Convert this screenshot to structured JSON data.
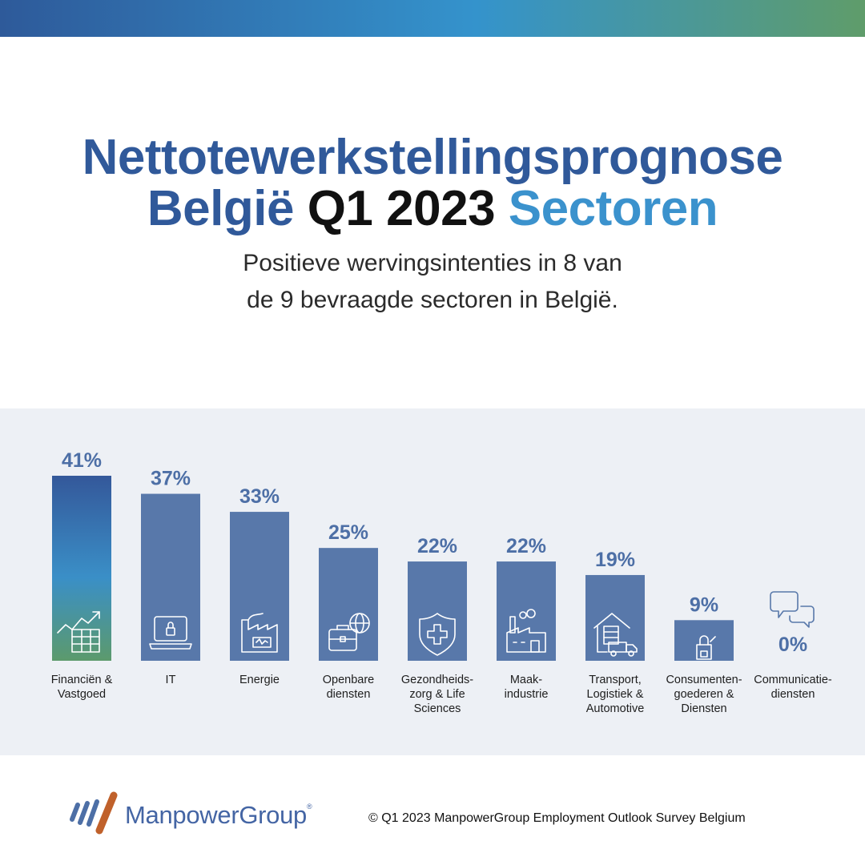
{
  "header": {
    "title_line1": "Nettotewerkstellingsprognose",
    "title_part_country": "België",
    "title_part_period": "Q1 2023",
    "title_part_sectors": "Sectoren",
    "subtitle_line1": "Positieve wervingsintenties in 8 van",
    "subtitle_line2": "de 9 bevraagde sectoren in België."
  },
  "chart_data": {
    "type": "bar",
    "categories": [
      [
        "Financiën &",
        "Vastgoed"
      ],
      [
        "IT"
      ],
      [
        "Energie"
      ],
      [
        "Openbare",
        "diensten"
      ],
      [
        "Gezondheids-",
        "zorg & Life",
        "Sciences"
      ],
      [
        "Maak-",
        "industrie"
      ],
      [
        "Transport,",
        "Logistiek &",
        "Automotive"
      ],
      [
        "Consumenten-",
        "goederen &",
        "Diensten"
      ],
      [
        "Communicatie-",
        "diensten"
      ]
    ],
    "values": [
      41,
      37,
      33,
      25,
      22,
      22,
      19,
      9,
      0
    ],
    "value_labels": [
      "41%",
      "37%",
      "33%",
      "25%",
      "22%",
      "22%",
      "19%",
      "9%",
      "0%"
    ],
    "icons": [
      "growth-chart-icon",
      "laptop-lock-icon",
      "factory-battery-icon",
      "briefcase-globe-icon",
      "medical-shield-icon",
      "factory-icon",
      "warehouse-truck-icon",
      "shopping-bag-icon",
      "chat-bubbles-icon"
    ],
    "ylim": [
      0,
      41
    ],
    "grid": false,
    "colors": {
      "bar": "#5878aa",
      "highlight_top": "#34589a",
      "highlight_mid": "#3a8fc7",
      "highlight_bottom": "#5c9a6c",
      "value_label": "#4d6fa6",
      "icon": "#ffffff",
      "icon_outline": "#5878aa"
    }
  },
  "footer": {
    "brand": "ManpowerGroup",
    "brand_mark": "®",
    "copyright": "© Q1 2023 ManpowerGroup Employment Outlook Survey Belgium"
  }
}
